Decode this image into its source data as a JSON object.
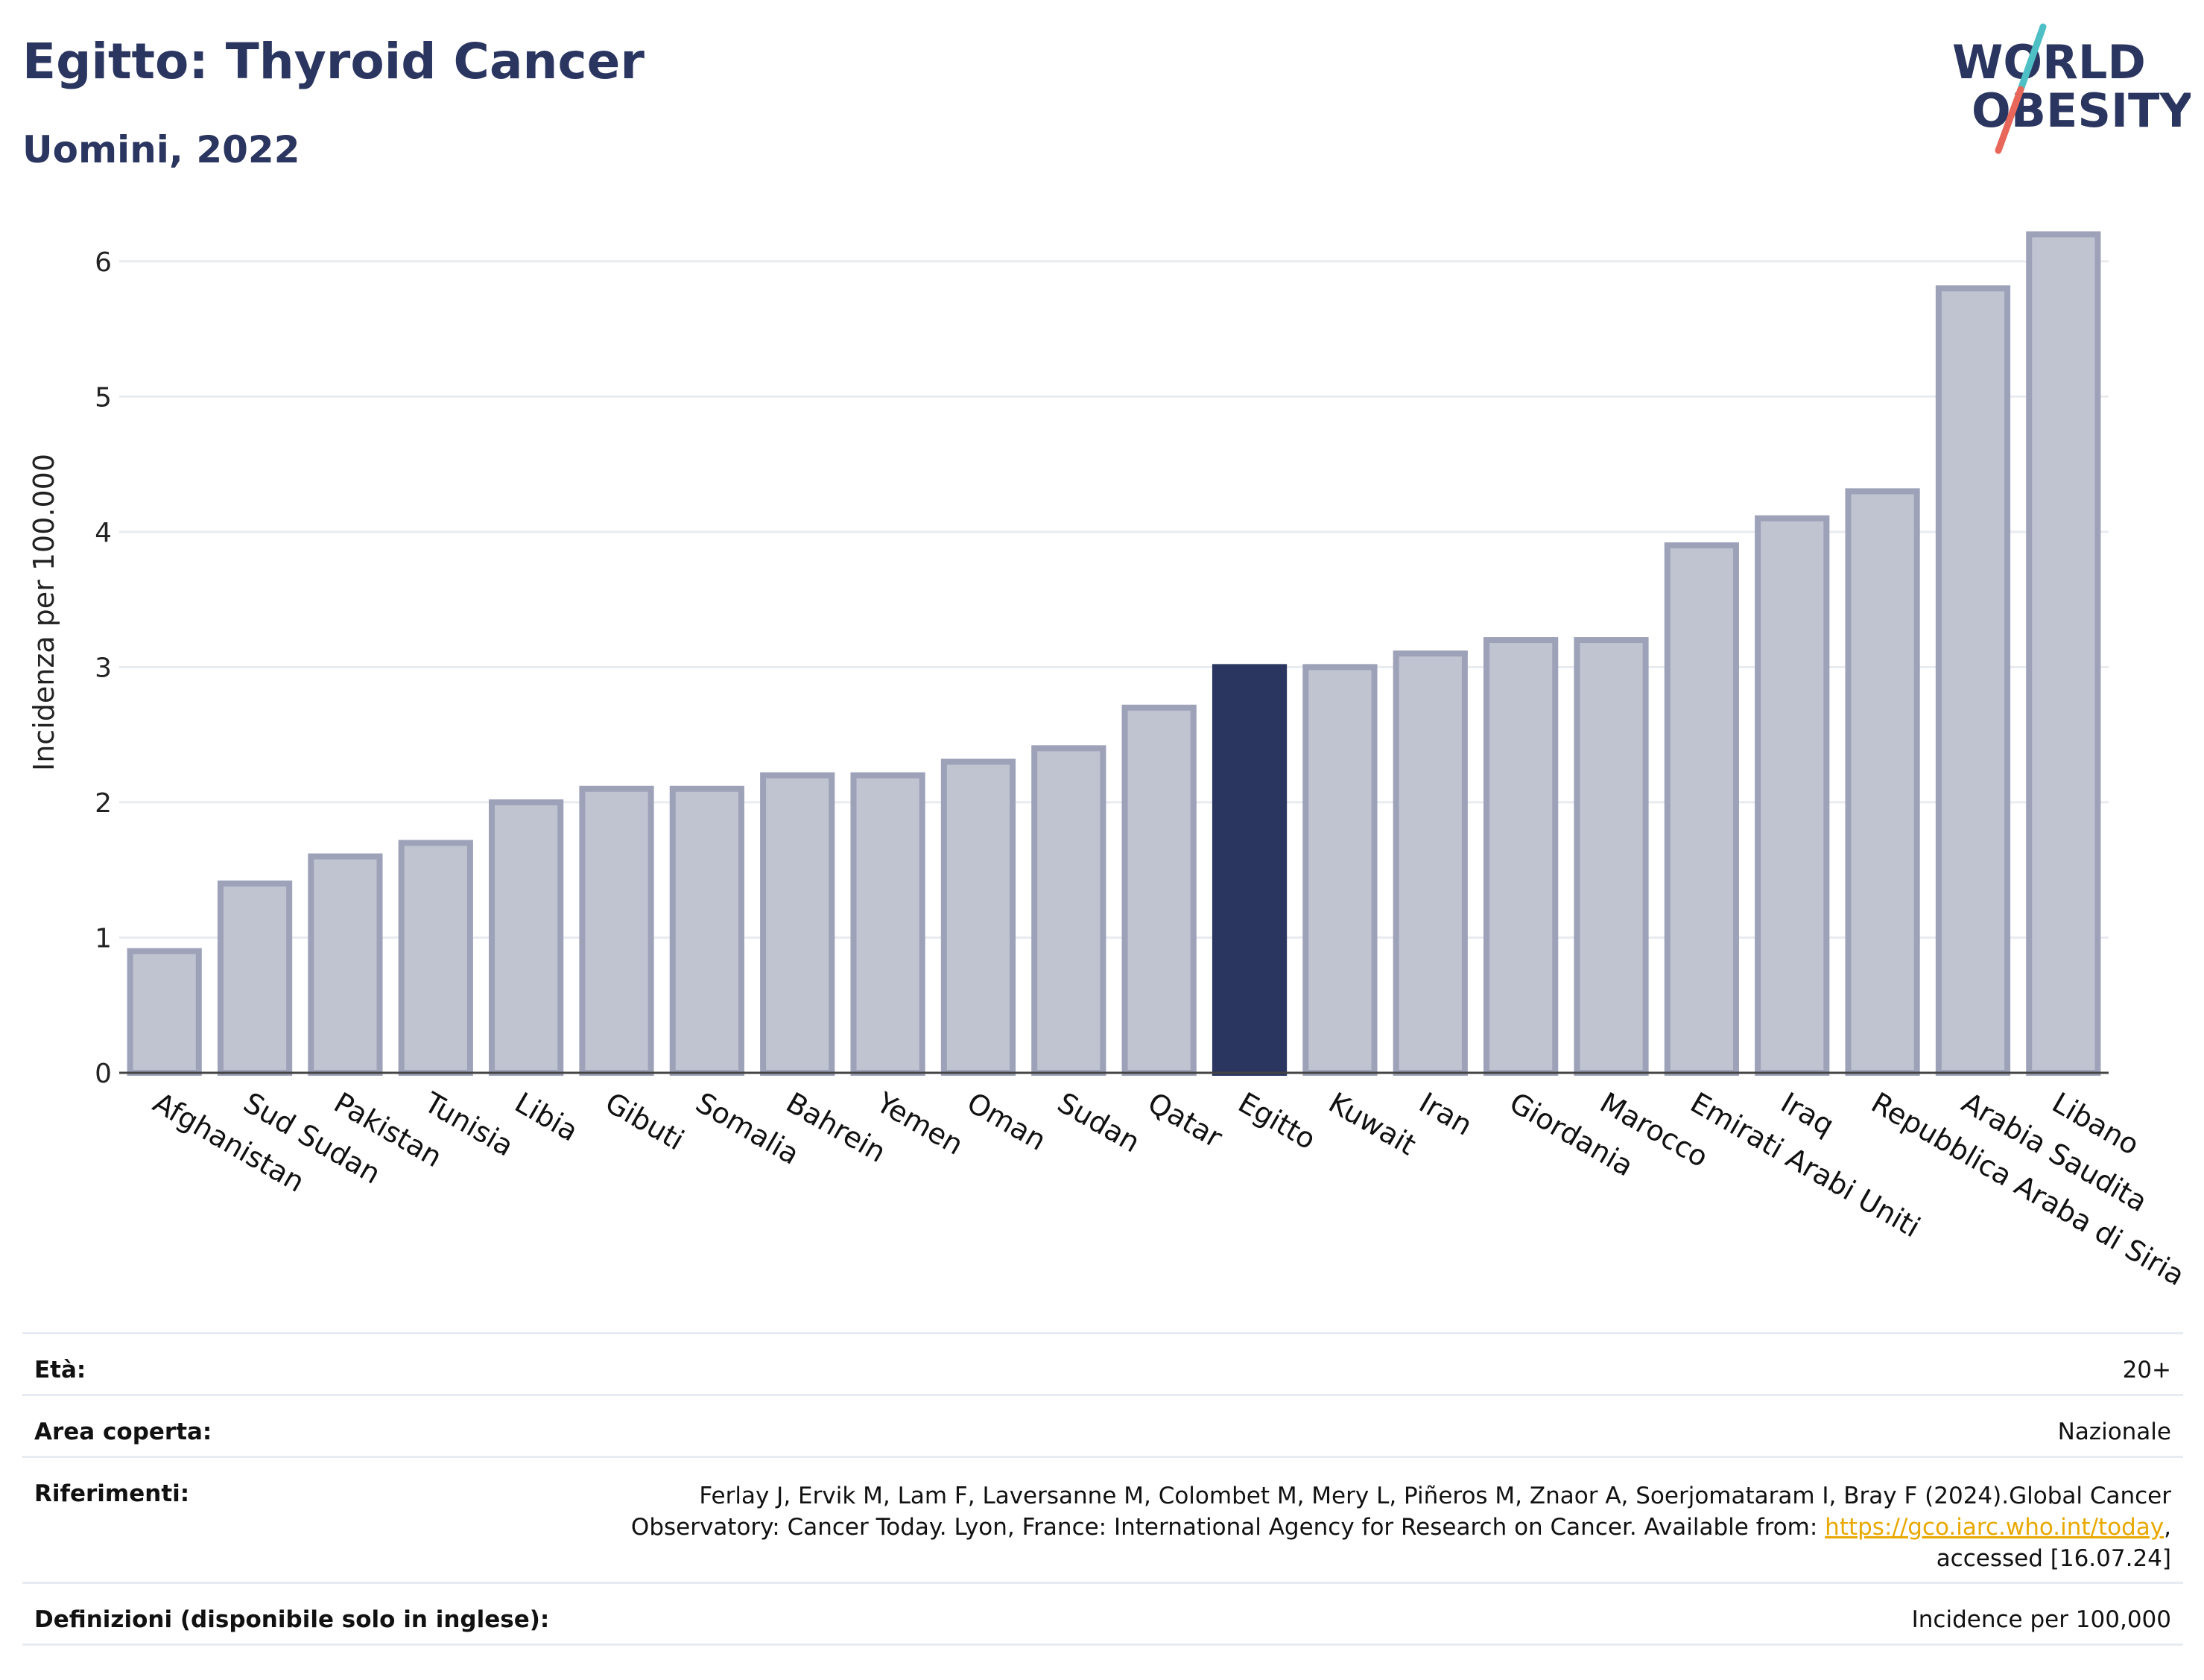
{
  "header": {
    "title": "Egitto: Thyroid Cancer",
    "subtitle": "Uomini, 2022"
  },
  "logo": {
    "line1": "WORLD",
    "line2": "OBESITY",
    "accent_colors": [
      "#4dbfc5",
      "#e8675a"
    ],
    "text_color": "#2a3560"
  },
  "chart_data": {
    "type": "bar",
    "categories": [
      "Afghanistan",
      "Sud Sudan",
      "Pakistan",
      "Tunisia",
      "Libia",
      "Gibuti",
      "Somalia",
      "Bahrein",
      "Yemen",
      "Oman",
      "Sudan",
      "Qatar",
      "Egitto",
      "Kuwait",
      "Iran",
      "Giordania",
      "Marocco",
      "Emirati Arabi Uniti",
      "Iraq",
      "Repubblica Araba di Siria",
      "Arabia Saudita",
      "Libano"
    ],
    "values": [
      0.9,
      1.4,
      1.6,
      1.7,
      2.0,
      2.1,
      2.1,
      2.2,
      2.2,
      2.3,
      2.4,
      2.7,
      3.0,
      3.0,
      3.1,
      3.2,
      3.2,
      3.9,
      4.1,
      4.3,
      5.8,
      6.2
    ],
    "highlight": "Egitto",
    "ylabel": "Incidenza per 100.000",
    "xlabel": "",
    "ylim": [
      0,
      6.5
    ],
    "yticks": [
      0,
      1,
      2,
      3,
      4,
      5,
      6
    ],
    "grid": true,
    "colors": {
      "bar": "#c0c3d0",
      "bar_border": "#9da2b9",
      "highlight": "#2a3560",
      "grid": "#e8ebf0"
    }
  },
  "meta": {
    "age_label": "Età:",
    "age_value": "20+",
    "area_label": "Area coperta:",
    "area_value": "Nazionale",
    "ref_label": "Riferimenti:",
    "ref_line1": "Ferlay J, Ervik M, Lam F, Laversanne M, Colombet M, Mery L, Piñeros M, Znaor A, Soerjomataram I, Bray F (2024).Global Cancer",
    "ref_line2_prefix": "Observatory: Cancer Today. Lyon, France: International Agency for Research on Cancer. Available from: ",
    "ref_link": "https://gco.iarc.who.int/today",
    "ref_line2_suffix": ",",
    "ref_line3": "accessed [16.07.24]",
    "def_label": "Definizioni (disponibile solo in inglese):",
    "def_value": "Incidence per 100,000"
  }
}
